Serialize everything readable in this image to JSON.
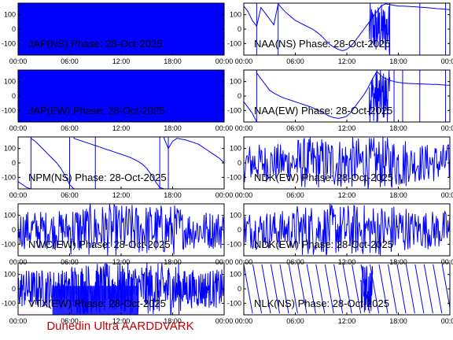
{
  "footer": "Dunedin Ultra AARDDVARK",
  "colors": {
    "trace": "#0000ff",
    "footer": "#cc0000",
    "axis": "#000000"
  },
  "chart_data": [
    {
      "type": "line",
      "station": "JAP(NS)",
      "title": "JAP(NS) Phase: 28-Oct-2025",
      "x_ticks": [
        "00:00",
        "06:00",
        "12:00",
        "18:00",
        "00:00"
      ],
      "y_ticks": [
        100,
        0,
        -100
      ],
      "ylim": [
        -180,
        180
      ],
      "xlim_hours": [
        0,
        24
      ],
      "pattern": "solid",
      "series": [
        {
          "values": []
        }
      ]
    },
    {
      "type": "line",
      "station": "NAA(NS)",
      "title": "NAA(NS) Phase: 28-Oct-2025",
      "x_ticks": [
        "00:00",
        "06:00",
        "12:00",
        "18:00",
        "00:00"
      ],
      "y_ticks": [
        100,
        0,
        -100
      ],
      "ylim": [
        -180,
        180
      ],
      "xlim_hours": [
        0,
        24
      ],
      "pattern": "naa_ns",
      "series": [
        {
          "x_hours": [
            0,
            0.5,
            1,
            1.5,
            2,
            2.5,
            3,
            3.5,
            4,
            4.5,
            5,
            5.5,
            6,
            6.5,
            7,
            7.5,
            8,
            8.5,
            9,
            9.5,
            10,
            10.5,
            11,
            11.5,
            12,
            12.5,
            13,
            13.5,
            14,
            14.5,
            15,
            15.5,
            16,
            16.5,
            17,
            17.5,
            18,
            18.5,
            19,
            19.5,
            20,
            20.5,
            21,
            21.5,
            22,
            22.5,
            23,
            23.5,
            24
          ],
          "values": [
            160,
            120,
            60,
            20,
            150,
            110,
            70,
            30,
            175,
            140,
            110,
            85,
            60,
            45,
            30,
            15,
            0,
            -20,
            -45,
            -75,
            -105,
            -125,
            -140,
            -150,
            -140,
            -115,
            -80,
            -40,
            0,
            40,
            80,
            120,
            160,
            175,
            170,
            165,
            160,
            160,
            158,
            156,
            155,
            152,
            150,
            148,
            145,
            142,
            140,
            138,
            135
          ]
        }
      ]
    },
    {
      "type": "line",
      "station": "JAP(EW)",
      "title": "JAP(EW) Phase: 28-Oct-2025",
      "x_ticks": [
        "00:00",
        "06:00",
        "12:00",
        "18:00",
        "00:00"
      ],
      "y_ticks": [
        100,
        0,
        -100
      ],
      "ylim": [
        -180,
        180
      ],
      "xlim_hours": [
        0,
        24
      ],
      "pattern": "solid",
      "series": [
        {
          "values": []
        }
      ]
    },
    {
      "type": "line",
      "station": "NAA(EW)",
      "title": "NAA(EW) Phase: 28-Oct-2025",
      "x_ticks": [
        "00:00",
        "06:00",
        "12:00",
        "18:00",
        "00:00"
      ],
      "y_ticks": [
        100,
        0,
        -100
      ],
      "ylim": [
        -180,
        180
      ],
      "xlim_hours": [
        0,
        24
      ],
      "pattern": "naa_ew",
      "series": [
        {
          "x_hours": [
            0,
            0.5,
            1,
            1.5,
            2,
            2.5,
            3,
            3.5,
            4,
            4.5,
            5,
            5.5,
            6,
            6.5,
            7,
            7.5,
            8,
            8.5,
            9,
            9.5,
            10,
            10.5,
            11,
            11.5,
            12,
            12.5,
            13,
            13.5,
            14,
            14.5,
            15,
            15.5,
            16,
            16.5,
            17,
            17.5,
            18,
            18.5,
            19,
            19.5,
            20,
            20.5,
            21,
            21.5,
            22,
            22.5,
            23,
            23.5,
            24
          ],
          "values": [
            -40,
            -80,
            -120,
            160,
            120,
            80,
            40,
            20,
            5,
            -10,
            -20,
            -30,
            -40,
            -50,
            -60,
            -70,
            -80,
            -95,
            -110,
            -125,
            -140,
            -150,
            -155,
            -150,
            -140,
            -110,
            -70,
            -30,
            10,
            60,
            120,
            170,
            140,
            120,
            110,
            100,
            95,
            90,
            88,
            86,
            85,
            84,
            83,
            82,
            81,
            80,
            78,
            76,
            75
          ]
        }
      ]
    },
    {
      "type": "line",
      "station": "NPM(NS)",
      "title": "NPM(NS) Phase: 28-Oct-2025",
      "x_ticks": [
        "00:00",
        "06:00",
        "12:00",
        "18:00",
        "00:00"
      ],
      "y_ticks": [
        100,
        0,
        -100
      ],
      "ylim": [
        -180,
        180
      ],
      "xlim_hours": [
        0,
        24
      ],
      "pattern": "npm",
      "series": [
        {
          "x_hours": [
            0,
            0.5,
            1,
            1.5,
            2,
            2.5,
            3,
            3.5,
            4,
            4.5,
            5,
            5.5,
            6,
            6.5,
            7,
            7.5,
            8,
            8.5,
            9,
            9.5,
            10,
            10.5,
            11,
            11.5,
            12,
            12.5,
            13,
            13.5,
            14,
            14.5,
            15,
            15.5,
            16,
            16.5,
            17,
            17.5,
            18,
            18.5,
            19,
            19.5,
            20,
            20.5,
            21,
            21.5,
            22,
            22.5,
            23,
            23.5,
            24
          ],
          "values": [
            -130,
            -150,
            -170,
            170,
            150,
            120,
            90,
            60,
            30,
            0,
            -40,
            -90,
            -150,
            170,
            160,
            150,
            140,
            130,
            120,
            110,
            100,
            90,
            80,
            70,
            60,
            50,
            40,
            25,
            10,
            -10,
            -40,
            -80,
            -130,
            -170,
            170,
            100,
            150,
            170,
            165,
            160,
            150,
            140,
            130,
            110,
            90,
            70,
            50,
            30,
            0
          ]
        }
      ]
    },
    {
      "type": "line",
      "station": "NDK(EW)",
      "title": "NDK(EW) Phase: 28-Oct-2025",
      "x_ticks": [
        "00:00",
        "06:00",
        "12:00",
        "18:00",
        "00:00"
      ],
      "y_ticks": [
        100,
        0,
        -100
      ],
      "ylim": [
        -180,
        180
      ],
      "xlim_hours": [
        0,
        24
      ],
      "pattern": "noise",
      "series": [
        {
          "values": []
        }
      ]
    },
    {
      "type": "line",
      "station": "NWC(EW)",
      "title": "NWC(EW) Phase: 28-Oct-2025",
      "x_ticks": [
        "00:00",
        "06:00",
        "12:00",
        "18:00",
        "00:00"
      ],
      "y_ticks": [
        100,
        0,
        -100
      ],
      "ylim": [
        -180,
        180
      ],
      "xlim_hours": [
        0,
        24
      ],
      "pattern": "noise",
      "series": [
        {
          "values": []
        }
      ]
    },
    {
      "type": "line",
      "station": "NDK(EW)",
      "title": "NDK(EW) Phase: 28-Oct-2025",
      "x_ticks": [
        "00:00",
        "06:00",
        "12:00",
        "18:00",
        "00:00"
      ],
      "y_ticks": [
        100,
        0,
        -100
      ],
      "ylim": [
        -180,
        180
      ],
      "xlim_hours": [
        0,
        24
      ],
      "pattern": "noise",
      "series": [
        {
          "values": []
        }
      ]
    },
    {
      "type": "line",
      "station": "VTX(EW)",
      "title": "VTX(EW) Phase: 28-Oct-2025",
      "x_ticks": [
        "00:00",
        "06:00",
        "12:00",
        "18:00",
        "00:00"
      ],
      "y_ticks": [
        100,
        0,
        -100
      ],
      "ylim": [
        -180,
        180
      ],
      "xlim_hours": [
        0,
        24
      ],
      "pattern": "dense",
      "series": [
        {
          "values": []
        }
      ]
    },
    {
      "type": "line",
      "station": "NLK(NS)",
      "title": "NLK(NS) Phase: 28-Oct-2025",
      "x_ticks": [
        "00:00",
        "06:00",
        "12:00",
        "18:00",
        "00:00"
      ],
      "y_ticks": [
        100,
        0,
        -100
      ],
      "ylim": [
        -180,
        180
      ],
      "xlim_hours": [
        0,
        24
      ],
      "pattern": "sawtooth",
      "series": [
        {
          "values": []
        }
      ]
    }
  ]
}
